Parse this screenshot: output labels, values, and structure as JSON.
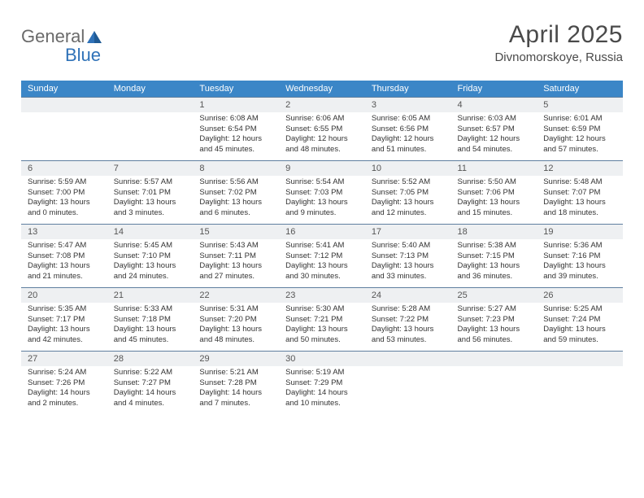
{
  "logo_general": "General",
  "logo_blue": "Blue",
  "month_title": "April 2025",
  "location": "Divnomorskoye, Russia",
  "weekdays": [
    "Sunday",
    "Monday",
    "Tuesday",
    "Wednesday",
    "Thursday",
    "Friday",
    "Saturday"
  ],
  "colors": {
    "header_bg": "#3b86c7",
    "header_fg": "#ffffff",
    "daybar_bg": "#eef0f2",
    "rule": "#5f7fa0",
    "text": "#333333",
    "title": "#4a4a4a",
    "logo_gray": "#6a6a6a",
    "logo_blue": "#2f72b8"
  },
  "weeks": [
    [
      {
        "n": "",
        "l1": "",
        "l2": "",
        "l3": "",
        "l4": ""
      },
      {
        "n": "",
        "l1": "",
        "l2": "",
        "l3": "",
        "l4": ""
      },
      {
        "n": "1",
        "l1": "Sunrise: 6:08 AM",
        "l2": "Sunset: 6:54 PM",
        "l3": "Daylight: 12 hours",
        "l4": "and 45 minutes."
      },
      {
        "n": "2",
        "l1": "Sunrise: 6:06 AM",
        "l2": "Sunset: 6:55 PM",
        "l3": "Daylight: 12 hours",
        "l4": "and 48 minutes."
      },
      {
        "n": "3",
        "l1": "Sunrise: 6:05 AM",
        "l2": "Sunset: 6:56 PM",
        "l3": "Daylight: 12 hours",
        "l4": "and 51 minutes."
      },
      {
        "n": "4",
        "l1": "Sunrise: 6:03 AM",
        "l2": "Sunset: 6:57 PM",
        "l3": "Daylight: 12 hours",
        "l4": "and 54 minutes."
      },
      {
        "n": "5",
        "l1": "Sunrise: 6:01 AM",
        "l2": "Sunset: 6:59 PM",
        "l3": "Daylight: 12 hours",
        "l4": "and 57 minutes."
      }
    ],
    [
      {
        "n": "6",
        "l1": "Sunrise: 5:59 AM",
        "l2": "Sunset: 7:00 PM",
        "l3": "Daylight: 13 hours",
        "l4": "and 0 minutes."
      },
      {
        "n": "7",
        "l1": "Sunrise: 5:57 AM",
        "l2": "Sunset: 7:01 PM",
        "l3": "Daylight: 13 hours",
        "l4": "and 3 minutes."
      },
      {
        "n": "8",
        "l1": "Sunrise: 5:56 AM",
        "l2": "Sunset: 7:02 PM",
        "l3": "Daylight: 13 hours",
        "l4": "and 6 minutes."
      },
      {
        "n": "9",
        "l1": "Sunrise: 5:54 AM",
        "l2": "Sunset: 7:03 PM",
        "l3": "Daylight: 13 hours",
        "l4": "and 9 minutes."
      },
      {
        "n": "10",
        "l1": "Sunrise: 5:52 AM",
        "l2": "Sunset: 7:05 PM",
        "l3": "Daylight: 13 hours",
        "l4": "and 12 minutes."
      },
      {
        "n": "11",
        "l1": "Sunrise: 5:50 AM",
        "l2": "Sunset: 7:06 PM",
        "l3": "Daylight: 13 hours",
        "l4": "and 15 minutes."
      },
      {
        "n": "12",
        "l1": "Sunrise: 5:48 AM",
        "l2": "Sunset: 7:07 PM",
        "l3": "Daylight: 13 hours",
        "l4": "and 18 minutes."
      }
    ],
    [
      {
        "n": "13",
        "l1": "Sunrise: 5:47 AM",
        "l2": "Sunset: 7:08 PM",
        "l3": "Daylight: 13 hours",
        "l4": "and 21 minutes."
      },
      {
        "n": "14",
        "l1": "Sunrise: 5:45 AM",
        "l2": "Sunset: 7:10 PM",
        "l3": "Daylight: 13 hours",
        "l4": "and 24 minutes."
      },
      {
        "n": "15",
        "l1": "Sunrise: 5:43 AM",
        "l2": "Sunset: 7:11 PM",
        "l3": "Daylight: 13 hours",
        "l4": "and 27 minutes."
      },
      {
        "n": "16",
        "l1": "Sunrise: 5:41 AM",
        "l2": "Sunset: 7:12 PM",
        "l3": "Daylight: 13 hours",
        "l4": "and 30 minutes."
      },
      {
        "n": "17",
        "l1": "Sunrise: 5:40 AM",
        "l2": "Sunset: 7:13 PM",
        "l3": "Daylight: 13 hours",
        "l4": "and 33 minutes."
      },
      {
        "n": "18",
        "l1": "Sunrise: 5:38 AM",
        "l2": "Sunset: 7:15 PM",
        "l3": "Daylight: 13 hours",
        "l4": "and 36 minutes."
      },
      {
        "n": "19",
        "l1": "Sunrise: 5:36 AM",
        "l2": "Sunset: 7:16 PM",
        "l3": "Daylight: 13 hours",
        "l4": "and 39 minutes."
      }
    ],
    [
      {
        "n": "20",
        "l1": "Sunrise: 5:35 AM",
        "l2": "Sunset: 7:17 PM",
        "l3": "Daylight: 13 hours",
        "l4": "and 42 minutes."
      },
      {
        "n": "21",
        "l1": "Sunrise: 5:33 AM",
        "l2": "Sunset: 7:18 PM",
        "l3": "Daylight: 13 hours",
        "l4": "and 45 minutes."
      },
      {
        "n": "22",
        "l1": "Sunrise: 5:31 AM",
        "l2": "Sunset: 7:20 PM",
        "l3": "Daylight: 13 hours",
        "l4": "and 48 minutes."
      },
      {
        "n": "23",
        "l1": "Sunrise: 5:30 AM",
        "l2": "Sunset: 7:21 PM",
        "l3": "Daylight: 13 hours",
        "l4": "and 50 minutes."
      },
      {
        "n": "24",
        "l1": "Sunrise: 5:28 AM",
        "l2": "Sunset: 7:22 PM",
        "l3": "Daylight: 13 hours",
        "l4": "and 53 minutes."
      },
      {
        "n": "25",
        "l1": "Sunrise: 5:27 AM",
        "l2": "Sunset: 7:23 PM",
        "l3": "Daylight: 13 hours",
        "l4": "and 56 minutes."
      },
      {
        "n": "26",
        "l1": "Sunrise: 5:25 AM",
        "l2": "Sunset: 7:24 PM",
        "l3": "Daylight: 13 hours",
        "l4": "and 59 minutes."
      }
    ],
    [
      {
        "n": "27",
        "l1": "Sunrise: 5:24 AM",
        "l2": "Sunset: 7:26 PM",
        "l3": "Daylight: 14 hours",
        "l4": "and 2 minutes."
      },
      {
        "n": "28",
        "l1": "Sunrise: 5:22 AM",
        "l2": "Sunset: 7:27 PM",
        "l3": "Daylight: 14 hours",
        "l4": "and 4 minutes."
      },
      {
        "n": "29",
        "l1": "Sunrise: 5:21 AM",
        "l2": "Sunset: 7:28 PM",
        "l3": "Daylight: 14 hours",
        "l4": "and 7 minutes."
      },
      {
        "n": "30",
        "l1": "Sunrise: 5:19 AM",
        "l2": "Sunset: 7:29 PM",
        "l3": "Daylight: 14 hours",
        "l4": "and 10 minutes."
      },
      {
        "n": "",
        "l1": "",
        "l2": "",
        "l3": "",
        "l4": ""
      },
      {
        "n": "",
        "l1": "",
        "l2": "",
        "l3": "",
        "l4": ""
      },
      {
        "n": "",
        "l1": "",
        "l2": "",
        "l3": "",
        "l4": ""
      }
    ]
  ]
}
